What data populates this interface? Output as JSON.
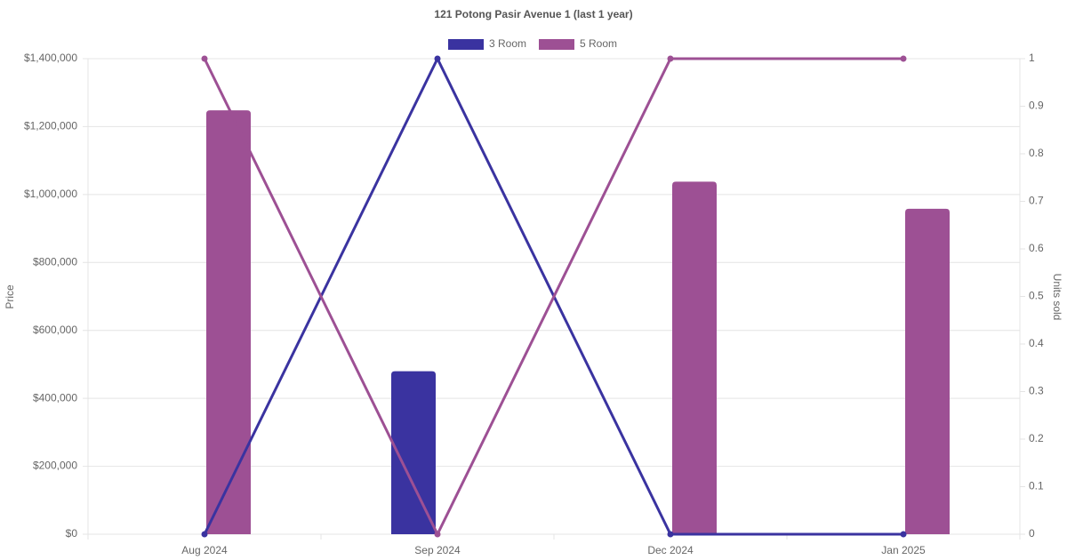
{
  "chart_data": {
    "type": "bar-line",
    "title": "121 Potong Pasir Avenue 1 (last 1 year)",
    "y_label": "Price",
    "y2_label": "Units sold",
    "categories": [
      "Aug 2024",
      "Sep 2024",
      "Dec 2024",
      "Jan 2025"
    ],
    "series": [
      {
        "name": "3 Room",
        "color": "#3a33a0",
        "values": [
          null,
          480000,
          null,
          null
        ],
        "units_sold": [
          0,
          1,
          0,
          0
        ]
      },
      {
        "name": "5 Room",
        "color": "#9d5094",
        "values": [
          1248000,
          null,
          1038000,
          958000
        ],
        "units_sold": [
          1,
          0,
          1,
          1
        ]
      }
    ],
    "ylim": [
      0,
      1400000
    ],
    "yticks": [
      {
        "value": 0,
        "label": "$0"
      },
      {
        "value": 200000,
        "label": "$200,000"
      },
      {
        "value": 400000,
        "label": "$400,000"
      },
      {
        "value": 600000,
        "label": "$600,000"
      },
      {
        "value": 800000,
        "label": "$800,000"
      },
      {
        "value": 1000000,
        "label": "$1,000,000"
      },
      {
        "value": 1200000,
        "label": "$1,200,000"
      },
      {
        "value": 1400000,
        "label": "$1,400,000"
      }
    ],
    "y2lim": [
      0,
      1
    ],
    "y2ticks": [
      0,
      0.1,
      0.2,
      0.3,
      0.4,
      0.5,
      0.6,
      0.7,
      0.8,
      0.9,
      1
    ],
    "grid": true,
    "legend": "top"
  }
}
